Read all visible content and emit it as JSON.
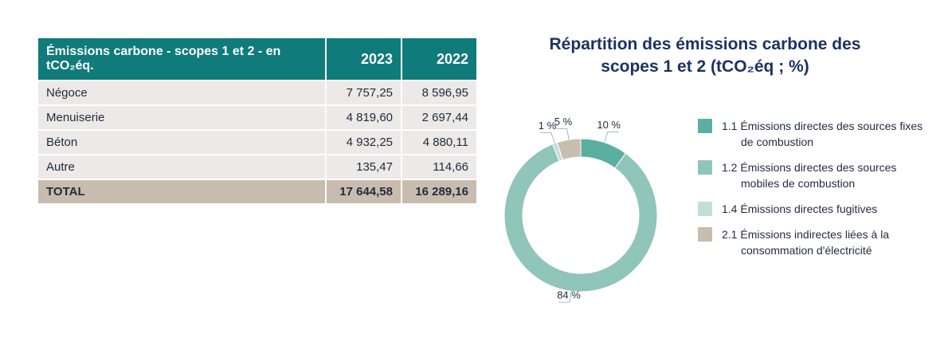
{
  "table": {
    "columns": [
      "Émissions carbone - scopes 1 et 2 - en tCO₂éq.",
      "2023",
      "2022"
    ],
    "rows": [
      [
        "Négoce",
        "7 757,25",
        "8 596,95"
      ],
      [
        "Menuiserie",
        "4 819,60",
        "2 697,44"
      ],
      [
        "Béton",
        "4 932,25",
        "4 880,11"
      ],
      [
        "Autre",
        "135,47",
        "114,66"
      ]
    ],
    "total": [
      "TOTAL",
      "17 644,58",
      "16 289,16"
    ]
  },
  "chart_data": {
    "type": "pie",
    "title": "Répartition des émissions carbone des scopes 1 et 2 (tCO₂éq ; %)",
    "categories": [
      "1.1 Émissions directes des sources fixes de combustion",
      "1.2 Émissions directes des sources mobiles de combustion",
      "1.4 Émissions directes fugitives",
      "2.1 Émissions indirectes liées à la consommation d'électricité"
    ],
    "values": [
      10,
      84,
      1,
      5
    ],
    "value_labels": [
      "10 %",
      "84 %",
      "1 %",
      "5 %"
    ],
    "colors": [
      "#5aafa2",
      "#90c5b9",
      "#bfe0d9",
      "#c9bdb0"
    ],
    "donut": true
  }
}
